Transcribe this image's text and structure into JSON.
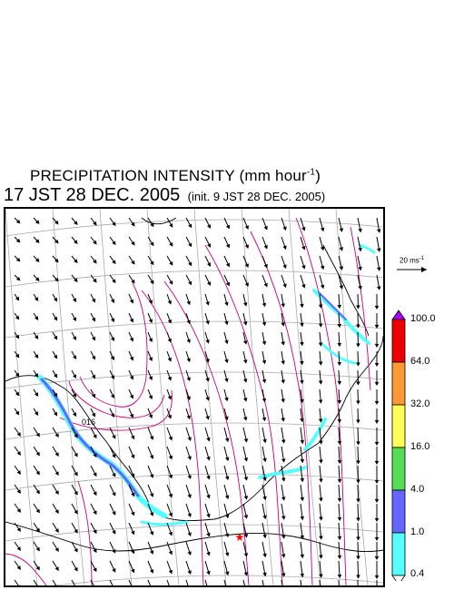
{
  "title": {
    "main": "PRECIPITATION INTENSITY (mm hour",
    "unit_exponent": "-1",
    "close": ")"
  },
  "subtitle": {
    "valid": "17 JST 28 DEC. 2005",
    "init": "(init. 9 JST 28 DEC. 2005)"
  },
  "map": {
    "contour_label": "016",
    "marker_color": "#ff0000"
  },
  "wind_scale": {
    "label": "20 ms",
    "exponent": "-1"
  },
  "legend": {
    "top_arrow_color": "#aa00ff",
    "bottom_arrow_color": "#ffffff",
    "bins": [
      {
        "color": "#ee0000"
      },
      {
        "color": "#ff9933"
      },
      {
        "color": "#ffff55"
      },
      {
        "color": "#55dd55"
      },
      {
        "color": "#6666ff"
      },
      {
        "color": "#55ffff"
      }
    ],
    "labels": [
      "100.0",
      "64.0",
      "32.0",
      "16.0",
      "4.0",
      "1.0",
      "0.4"
    ]
  }
}
